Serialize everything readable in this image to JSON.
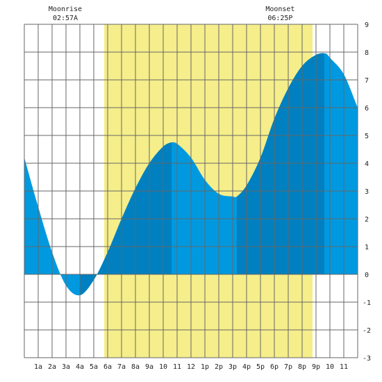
{
  "chart_data": {
    "type": "area",
    "moon_events": [
      {
        "label": "Moonrise",
        "time_text": "02:57A",
        "hour": 2.95
      },
      {
        "label": "Moonset",
        "time_text": "06:25P",
        "hour": 18.42
      }
    ],
    "daylight": {
      "start_hour": 5.75,
      "end_hour": 20.75
    },
    "x_tick_labels": [
      "1a",
      "2a",
      "3a",
      "4a",
      "5a",
      "6a",
      "7a",
      "8a",
      "9a",
      "10",
      "11",
      "12",
      "1p",
      "2p",
      "3p",
      "4p",
      "5p",
      "6p",
      "7p",
      "8p",
      "9p",
      "10",
      "11"
    ],
    "y_tick_labels": [
      "9",
      "8",
      "7",
      "6",
      "5",
      "4",
      "3",
      "2",
      "1",
      "0",
      "-1",
      "-2",
      "-3"
    ],
    "ylim": [
      -3,
      9
    ],
    "xlim": [
      0,
      24
    ],
    "grid": true,
    "series": [
      {
        "x": [
          0,
          0.9,
          2,
          3,
          4,
          5,
          6,
          7,
          8,
          9,
          10,
          10.6,
          11,
          12,
          13,
          14,
          15,
          15.3,
          16,
          17,
          18,
          19,
          20,
          21,
          21.7,
          22,
          23,
          24
        ],
        "values": [
          4.2,
          2.6,
          0.8,
          -0.4,
          -0.75,
          -0.2,
          0.8,
          2.0,
          3.1,
          4.0,
          4.6,
          4.75,
          4.7,
          4.2,
          3.4,
          2.9,
          2.8,
          2.8,
          3.2,
          4.2,
          5.6,
          6.7,
          7.5,
          7.9,
          7.95,
          7.8,
          7.2,
          6.0
        ]
      }
    ],
    "colors": {
      "tide_light": "#0099e0",
      "tide_dark": "#0080c0",
      "daylight": "#f5ee8a",
      "grid": "#666666",
      "background": "#ffffff"
    },
    "shading_bands": [
      {
        "start_hour": 4,
        "end_hour": 5.6,
        "shade": "dark"
      },
      {
        "start_hour": 5.6,
        "end_hour": 10.6,
        "shade": "dark"
      },
      {
        "start_hour": 15.3,
        "end_hour": 21.6,
        "shade": "dark"
      }
    ]
  }
}
